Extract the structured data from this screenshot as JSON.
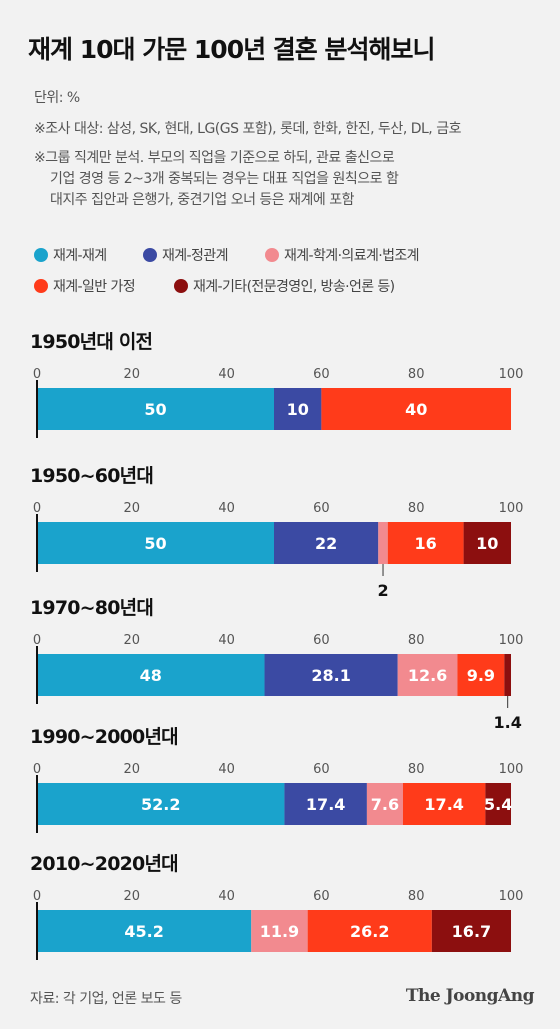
{
  "title": "재계 10대 가문 100년 결혼 분석해보니",
  "unit": "단위: %",
  "note1": "※조사 대상: 삼성, SK, 현대, LG(GS 포함), 롯데, 한화, 한진, 두산, DL, 금호",
  "note2_lines": [
    "※그룹 직계만 분석. 부모의 직업을 기준으로 하되, 관료 출신으로",
    "기업 경영 등 2~3개 중복되는 경우는 대표 직업을 원칙으로 함",
    "대지주 집안과 은행가, 중견기업 오너 등은 재계에 포함"
  ],
  "source": "자료: 각 기업, 언론 보도 등",
  "logo": "The JoongAng",
  "chart_data": {
    "type": "bar",
    "orientation": "horizontal",
    "stacked": true,
    "xlim": [
      0,
      100
    ],
    "xticks": [
      "0",
      "20",
      "40",
      "60",
      "80",
      "100"
    ],
    "series": [
      {
        "name": "재계-재계",
        "color": "#1aa3cc"
      },
      {
        "name": "재계-정관계",
        "color": "#3b4aa3"
      },
      {
        "name": "재계-학계·의료계·법조계",
        "color": "#f28a8f"
      },
      {
        "name": "재계-일반 가정",
        "color": "#ff3b1a"
      },
      {
        "name": "재계-기타(전문경영인, 방송·언론 등)",
        "color": "#8c0f0f"
      }
    ],
    "categories": [
      "1950년대 이전",
      "1950~60년대",
      "1970~80년대",
      "1990~2000년대",
      "2010~2020년대"
    ],
    "values": [
      [
        50,
        10,
        0,
        40,
        0
      ],
      [
        50,
        22,
        2,
        16,
        10
      ],
      [
        48,
        28.1,
        12.6,
        9.9,
        1.4
      ],
      [
        52.2,
        17.4,
        7.6,
        17.4,
        5.4
      ],
      [
        45.2,
        0,
        11.9,
        26.2,
        16.7
      ]
    ],
    "labels": [
      [
        "50",
        "10",
        "",
        "40",
        ""
      ],
      [
        "50",
        "22",
        "2",
        "16",
        "10"
      ],
      [
        "48",
        "28.1",
        "12.6",
        "9.9",
        "1.4"
      ],
      [
        "52.2",
        "17.4",
        "7.6",
        "17.4",
        "5.4"
      ],
      [
        "45.2",
        "",
        "11.9",
        "26.2",
        "16.7"
      ]
    ]
  }
}
